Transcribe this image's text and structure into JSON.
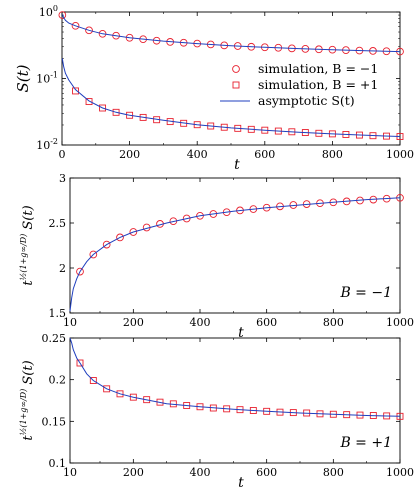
{
  "chart_data": [
    {
      "type": "scatter",
      "panel": "top",
      "ylabel": "S(t)",
      "xlabel": "t",
      "xlim": [
        0,
        1000
      ],
      "ylim": [
        0.01,
        1
      ],
      "yscale": "log",
      "x_ticks": [
        "0",
        "200",
        "400",
        "600",
        "800",
        "1000"
      ],
      "y_ticks": [
        {
          "base": "10",
          "exp": "0",
          "value": 1
        },
        {
          "base": "10",
          "exp": "-1",
          "value": 0.1
        },
        {
          "base": "10",
          "exp": "-2",
          "value": 0.01
        }
      ],
      "legend": {
        "position": "right",
        "entries": [
          {
            "label": "simulation, B = −1",
            "marker": "circle",
            "color": "#e8212f"
          },
          {
            "label": "simulation, B = +1",
            "marker": "square",
            "color": "#e8212f"
          },
          {
            "label": "asymptotic S(t)",
            "marker": "line",
            "color": "#1f3fbf"
          }
        ]
      },
      "series": [
        {
          "name": "simulation, B = −1",
          "marker": "circle",
          "x": [
            1,
            40,
            80,
            120,
            160,
            200,
            240,
            280,
            320,
            360,
            400,
            440,
            480,
            520,
            560,
            600,
            640,
            680,
            720,
            760,
            800,
            840,
            880,
            920,
            960,
            1000
          ],
          "y": [
            0.9,
            0.62,
            0.53,
            0.47,
            0.44,
            0.41,
            0.39,
            0.37,
            0.355,
            0.345,
            0.335,
            0.325,
            0.315,
            0.308,
            0.3,
            0.295,
            0.29,
            0.284,
            0.279,
            0.275,
            0.271,
            0.267,
            0.263,
            0.26,
            0.257,
            0.254
          ]
        },
        {
          "name": "simulation, B = +1",
          "marker": "square",
          "x": [
            40,
            80,
            120,
            160,
            200,
            240,
            280,
            320,
            360,
            400,
            440,
            480,
            520,
            560,
            600,
            640,
            680,
            720,
            760,
            800,
            840,
            880,
            920,
            960,
            1000
          ],
          "y": [
            0.065,
            0.045,
            0.036,
            0.031,
            0.028,
            0.026,
            0.024,
            0.0225,
            0.0212,
            0.0202,
            0.0193,
            0.0185,
            0.0178,
            0.0172,
            0.0167,
            0.0162,
            0.0158,
            0.0154,
            0.015,
            0.0147,
            0.0144,
            0.0141,
            0.0138,
            0.0136,
            0.0134
          ]
        },
        {
          "name": "asymptotic S(t)",
          "marker": "line",
          "x": [
            1,
            5,
            10,
            20,
            40,
            80,
            120,
            160,
            200,
            300,
            400,
            500,
            600,
            700,
            800,
            900,
            1000
          ],
          "y": [
            0.2,
            0.15,
            0.12,
            0.095,
            0.068,
            0.046,
            0.036,
            0.031,
            0.028,
            0.0235,
            0.0202,
            0.0181,
            0.0167,
            0.0156,
            0.0147,
            0.014,
            0.0134
          ]
        },
        {
          "name": "asymptotic S(t), B = −1",
          "marker": "line",
          "x": [
            1,
            5,
            10,
            20,
            40,
            80,
            120,
            160,
            200,
            300,
            400,
            500,
            600,
            700,
            800,
            900,
            1000
          ],
          "y": [
            0.92,
            0.82,
            0.75,
            0.68,
            0.62,
            0.53,
            0.47,
            0.44,
            0.41,
            0.365,
            0.335,
            0.31,
            0.295,
            0.282,
            0.271,
            0.262,
            0.254
          ]
        }
      ]
    },
    {
      "type": "scatter",
      "panel": "middle",
      "ylabel": "t^{(1/2)(1+g∞/D)} S(t)",
      "xlabel": "t",
      "annotation": "B = −1",
      "xlim": [
        10,
        1000
      ],
      "ylim": [
        1.5,
        3
      ],
      "x_ticks": [
        "10",
        "200",
        "400",
        "600",
        "800",
        "1000"
      ],
      "y_ticks": [
        "1.5",
        "2",
        "2.5",
        "3"
      ],
      "series": [
        {
          "name": "simulation, B = −1",
          "marker": "circle",
          "x": [
            40,
            80,
            120,
            160,
            200,
            240,
            280,
            320,
            360,
            400,
            440,
            480,
            520,
            560,
            600,
            640,
            680,
            720,
            760,
            800,
            840,
            880,
            920,
            960,
            1000
          ],
          "y": [
            1.96,
            2.15,
            2.26,
            2.34,
            2.4,
            2.45,
            2.49,
            2.52,
            2.55,
            2.58,
            2.6,
            2.62,
            2.64,
            2.655,
            2.67,
            2.685,
            2.7,
            2.71,
            2.72,
            2.73,
            2.74,
            2.75,
            2.76,
            2.77,
            2.78
          ]
        },
        {
          "name": "asymptotic",
          "marker": "line",
          "x": [
            10,
            15,
            20,
            30,
            40,
            60,
            80,
            120,
            160,
            200,
            300,
            400,
            500,
            600,
            700,
            800,
            900,
            1000
          ],
          "y": [
            1.52,
            1.67,
            1.77,
            1.88,
            1.96,
            2.07,
            2.15,
            2.26,
            2.34,
            2.4,
            2.5,
            2.58,
            2.63,
            2.67,
            2.7,
            2.73,
            2.76,
            2.78
          ]
        }
      ]
    },
    {
      "type": "scatter",
      "panel": "bottom",
      "ylabel": "t^{(1/2)(1+g∞/D)} S(t)",
      "xlabel": "t",
      "annotation": "B = +1",
      "xlim": [
        10,
        1000
      ],
      "ylim": [
        0.1,
        0.25
      ],
      "x_ticks": [
        "10",
        "200",
        "400",
        "600",
        "800",
        "1000"
      ],
      "y_ticks": [
        "0.1",
        "0.15",
        "0.2",
        "0.25"
      ],
      "series": [
        {
          "name": "simulation, B = +1",
          "marker": "square",
          "x": [
            40,
            80,
            120,
            160,
            200,
            240,
            280,
            320,
            360,
            400,
            440,
            480,
            520,
            560,
            600,
            640,
            680,
            720,
            760,
            800,
            840,
            880,
            920,
            960,
            1000
          ],
          "y": [
            0.22,
            0.199,
            0.189,
            0.183,
            0.179,
            0.176,
            0.173,
            0.171,
            0.169,
            0.1675,
            0.166,
            0.165,
            0.164,
            0.163,
            0.162,
            0.161,
            0.1605,
            0.16,
            0.159,
            0.1585,
            0.158,
            0.1575,
            0.157,
            0.1565,
            0.156
          ]
        },
        {
          "name": "asymptotic",
          "marker": "line",
          "x": [
            10,
            15,
            20,
            30,
            40,
            60,
            80,
            120,
            160,
            200,
            300,
            400,
            500,
            600,
            700,
            800,
            900,
            1000
          ],
          "y": [
            0.25,
            0.244,
            0.236,
            0.226,
            0.22,
            0.207,
            0.199,
            0.189,
            0.183,
            0.179,
            0.171,
            0.1675,
            0.1645,
            0.162,
            0.16,
            0.1585,
            0.157,
            0.156
          ]
        }
      ]
    }
  ]
}
